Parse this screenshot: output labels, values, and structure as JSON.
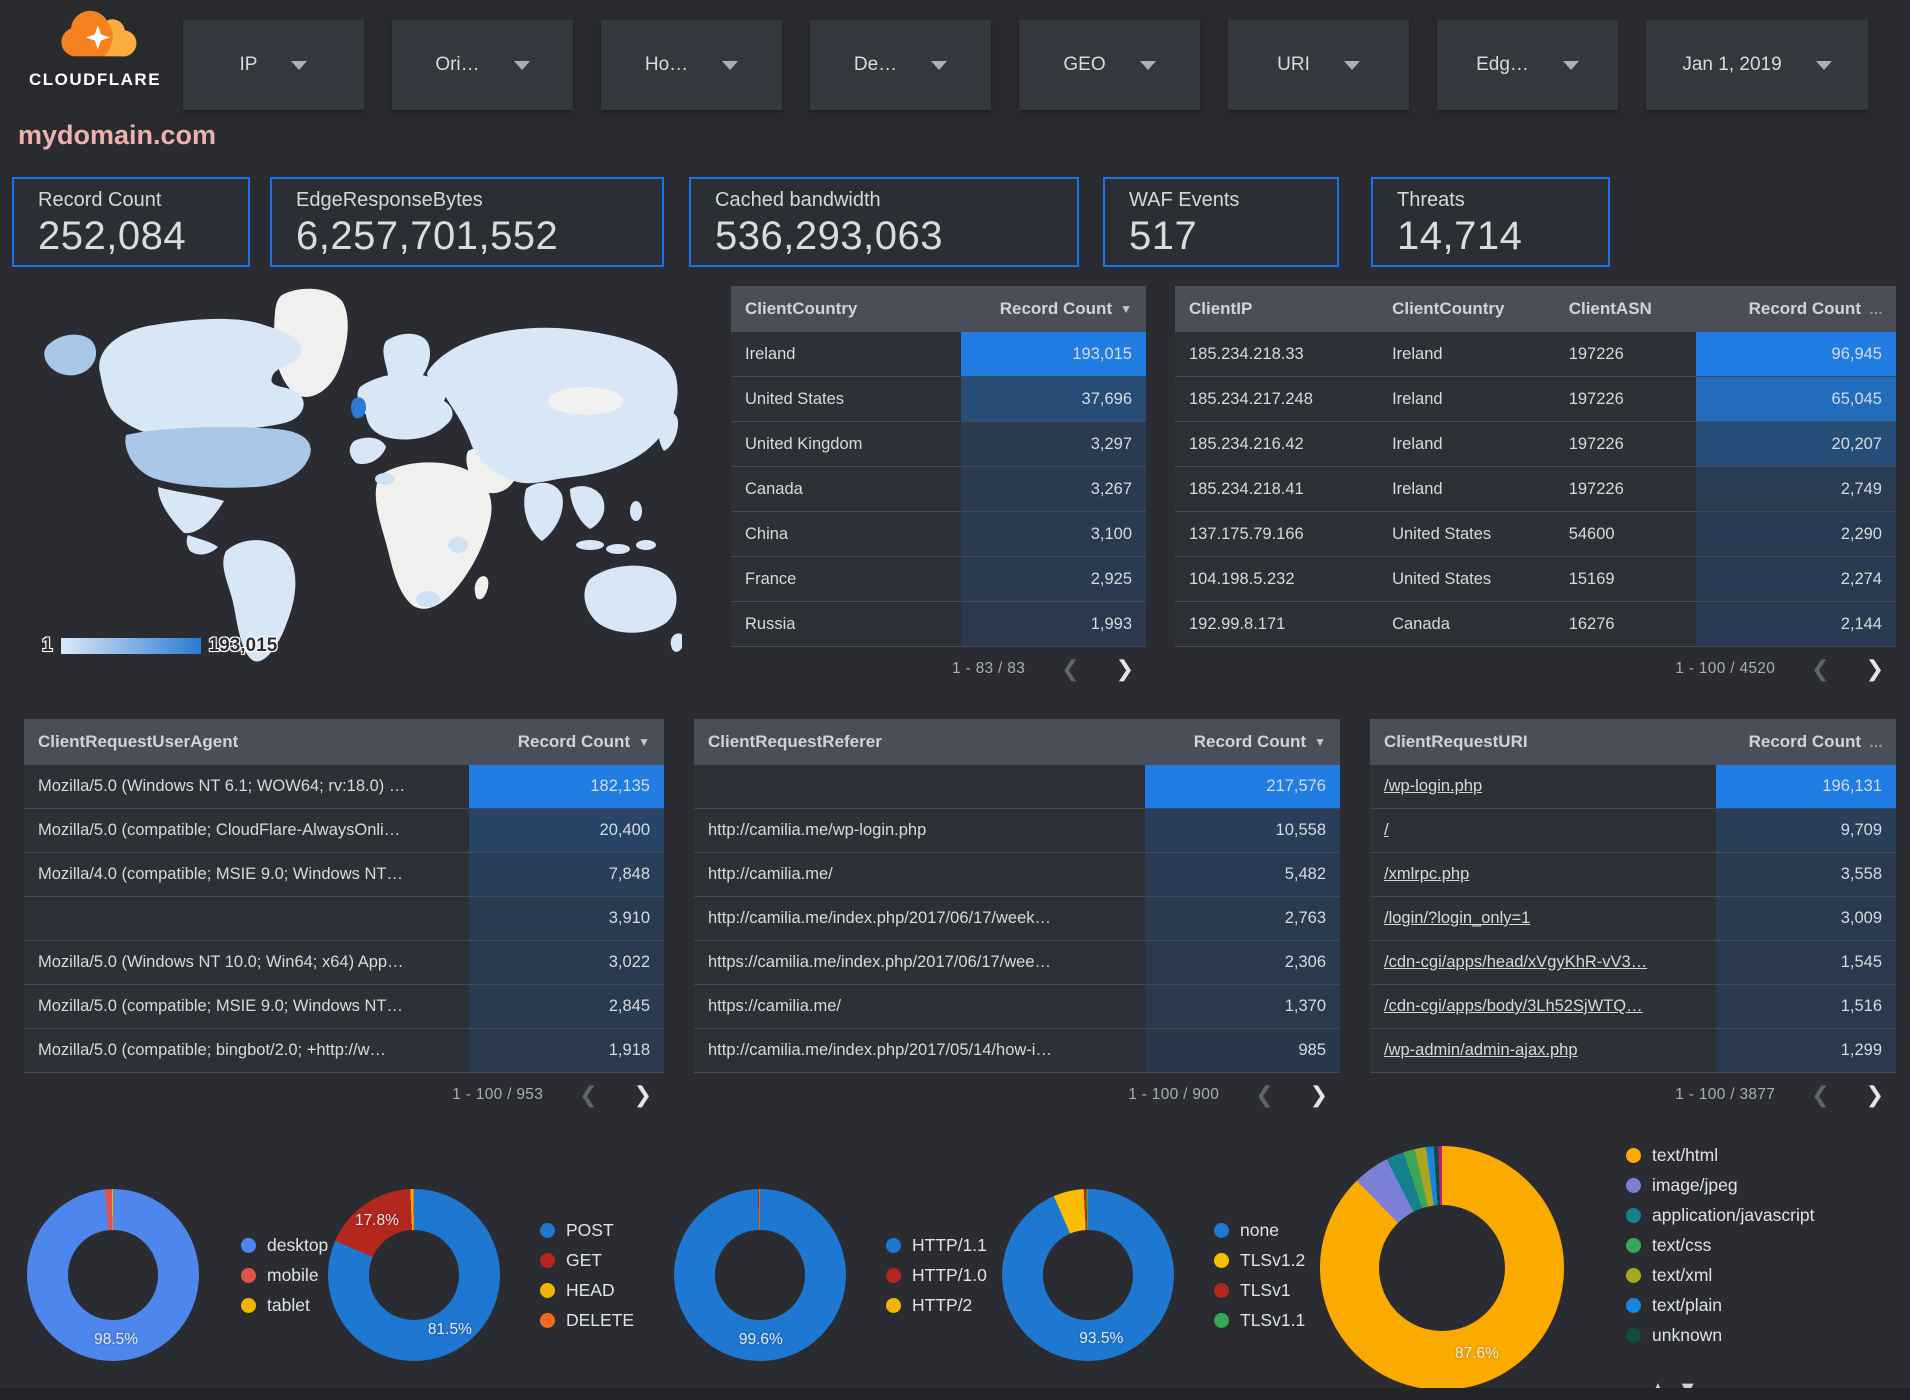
{
  "topbar": {
    "brand": "CLOUDFLARE",
    "filters": [
      {
        "label": "IP"
      },
      {
        "label": "Ori…"
      },
      {
        "label": "Ho…"
      },
      {
        "label": "De…"
      },
      {
        "label": "GEO"
      },
      {
        "label": "URI"
      },
      {
        "label": "Edg…"
      },
      {
        "label": "Jan 1, 2019"
      }
    ]
  },
  "title": "mydomain.com",
  "scorecards": [
    {
      "label": "Record Count",
      "value": "252,084"
    },
    {
      "label": "EdgeResponseBytes",
      "value": "6,257,701,552"
    },
    {
      "label": "Cached bandwidth",
      "value": "536,293,063"
    },
    {
      "label": "WAF Events",
      "value": "517"
    },
    {
      "label": "Threats",
      "value": "14,714"
    }
  ],
  "map": {
    "legend_min": "1",
    "legend_max": "193,015"
  },
  "colors": {
    "accent_blue": "#1a73e8",
    "heat_low": "#2a3749",
    "heat_high": "#2180e5",
    "map_country_max": "#2a7bd3",
    "title_pink": "#eeb1ad"
  },
  "tables": {
    "clientCountry": {
      "columns": [
        {
          "label": "ClientCountry"
        },
        {
          "label": "Record Count",
          "numeric": true,
          "sort": "▼"
        }
      ],
      "rows": [
        [
          "Ireland",
          "193,015"
        ],
        [
          "United States",
          "37,696"
        ],
        [
          "United Kingdom",
          "3,297"
        ],
        [
          "Canada",
          "3,267"
        ],
        [
          "China",
          "3,100"
        ],
        [
          "France",
          "2,925"
        ],
        [
          "Russia",
          "1,993"
        ]
      ],
      "pagination": "1 - 83 / 83"
    },
    "clientIP": {
      "columns": [
        {
          "label": "ClientIP"
        },
        {
          "label": "ClientCountry"
        },
        {
          "label": "ClientASN"
        },
        {
          "label": "Record Count",
          "numeric": true,
          "sort": "…"
        }
      ],
      "rows": [
        [
          "185.234.218.33",
          "Ireland",
          "197226",
          "96,945"
        ],
        [
          "185.234.217.248",
          "Ireland",
          "197226",
          "65,045"
        ],
        [
          "185.234.216.42",
          "Ireland",
          "197226",
          "20,207"
        ],
        [
          "185.234.218.41",
          "Ireland",
          "197226",
          "2,749"
        ],
        [
          "137.175.79.166",
          "United States",
          "54600",
          "2,290"
        ],
        [
          "104.198.5.232",
          "United States",
          "15169",
          "2,274"
        ],
        [
          "192.99.8.171",
          "Canada",
          "16276",
          "2,144"
        ]
      ],
      "pagination": "1 - 100 / 4520"
    },
    "userAgent": {
      "columns": [
        {
          "label": "ClientRequestUserAgent"
        },
        {
          "label": "Record Count",
          "numeric": true,
          "sort": "▼"
        }
      ],
      "rows": [
        [
          "Mozilla/5.0 (Windows NT 6.1; WOW64; rv:18.0) …",
          "182,135"
        ],
        [
          "Mozilla/5.0 (compatible; CloudFlare-AlwaysOnli…",
          "20,400"
        ],
        [
          "Mozilla/4.0 (compatible; MSIE 9.0; Windows NT…",
          "7,848"
        ],
        [
          "",
          "3,910"
        ],
        [
          "Mozilla/5.0 (Windows NT 10.0; Win64; x64) App…",
          "3,022"
        ],
        [
          "Mozilla/5.0 (compatible; MSIE 9.0; Windows NT…",
          "2,845"
        ],
        [
          "Mozilla/5.0 (compatible; bingbot/2.0; +http://w…",
          "1,918"
        ]
      ],
      "pagination": "1 - 100 / 953"
    },
    "referer": {
      "columns": [
        {
          "label": "ClientRequestReferer"
        },
        {
          "label": "Record Count",
          "numeric": true,
          "sort": "▼"
        }
      ],
      "rows": [
        [
          "",
          "217,576"
        ],
        [
          "http://camilia.me/wp-login.php",
          "10,558"
        ],
        [
          "http://camilia.me/",
          "5,482"
        ],
        [
          "http://camilia.me/index.php/2017/06/17/week…",
          "2,763"
        ],
        [
          "https://camilia.me/index.php/2017/06/17/wee…",
          "2,306"
        ],
        [
          "https://camilia.me/",
          "1,370"
        ],
        [
          "http://camilia.me/index.php/2017/05/14/how-i…",
          "985"
        ]
      ],
      "pagination": "1 - 100 / 900"
    },
    "uri": {
      "columns": [
        {
          "label": "ClientRequestURI",
          "link": true
        },
        {
          "label": "Record Count",
          "numeric": true,
          "sort": "…"
        }
      ],
      "rows": [
        [
          "/wp-login.php",
          "196,131"
        ],
        [
          "/",
          "9,709"
        ],
        [
          "/xmlrpc.php",
          "3,558"
        ],
        [
          "/login/?login_only=1",
          "3,009"
        ],
        [
          "/cdn-cgi/apps/head/xVgyKhR-vV3…",
          "1,545"
        ],
        [
          "/cdn-cgi/apps/body/3Lh52SjWTQ…",
          "1,516"
        ],
        [
          "/wp-admin/admin-ajax.php",
          "1,299"
        ]
      ],
      "pagination": "1 - 100 / 3877"
    }
  },
  "chart_data": [
    {
      "type": "pie",
      "name": "device-type",
      "hole": 0.52,
      "slices": [
        {
          "label": "desktop",
          "value": 98.5,
          "color": "#4d86ec"
        },
        {
          "label": "mobile",
          "value": 1.3,
          "color": "#df5348"
        },
        {
          "label": "tablet",
          "value": 0.2,
          "color": "#f1b500"
        }
      ]
    },
    {
      "type": "pie",
      "name": "http-method",
      "hole": 0.52,
      "slices": [
        {
          "label": "POST",
          "value": 81.5,
          "color": "#1e78d2"
        },
        {
          "label": "GET",
          "value": 17.8,
          "color": "#b3271f"
        },
        {
          "label": "HEAD",
          "value": 0.5,
          "color": "#f1b500"
        },
        {
          "label": "DELETE",
          "value": 0.2,
          "color": "#f26a21"
        }
      ]
    },
    {
      "type": "pie",
      "name": "http-protocol",
      "hole": 0.52,
      "slices": [
        {
          "label": "HTTP/1.1",
          "value": 99.6,
          "color": "#1e78d2"
        },
        {
          "label": "HTTP/1.0",
          "value": 0.3,
          "color": "#b3271f"
        },
        {
          "label": "HTTP/2",
          "value": 0.1,
          "color": "#f1b500"
        }
      ]
    },
    {
      "type": "pie",
      "name": "tls-version",
      "hole": 0.52,
      "slices": [
        {
          "label": "none",
          "value": 93.5,
          "color": "#1e78d2"
        },
        {
          "label": "TLSv1.2",
          "value": 5.7,
          "color": "#fbbc04"
        },
        {
          "label": "TLSv1",
          "value": 0.5,
          "color": "#b3271f"
        },
        {
          "label": "TLSv1.1",
          "value": 0.3,
          "color": "#34a853"
        }
      ]
    },
    {
      "type": "pie",
      "name": "content-type",
      "hole": 0.52,
      "legend_nav": {
        "up": "▲",
        "down": "▼"
      },
      "slices": [
        {
          "label": "text/html",
          "value": 87.6,
          "color": "#fbab00"
        },
        {
          "label": "image/jpeg",
          "value": 4.8,
          "color": "#7b80d6"
        },
        {
          "label": "application/javascript",
          "value": 2.4,
          "color": "#15818d"
        },
        {
          "label": "text/css",
          "value": 1.5,
          "color": "#3aa757"
        },
        {
          "label": "text/xml",
          "value": 1.5,
          "color": "#a9a622"
        },
        {
          "label": "text/plain",
          "value": 1.0,
          "color": "#1b85dd"
        },
        {
          "label": "unknown",
          "value": 0.6,
          "color": "#0d4f3c"
        },
        {
          "label": "",
          "value": 0.5,
          "color": "#c2187e"
        }
      ]
    },
    {
      "type": "geo-choropleth",
      "name": "requests-by-country",
      "metric": "Record Count",
      "min": 1,
      "max": 193015
    }
  ]
}
